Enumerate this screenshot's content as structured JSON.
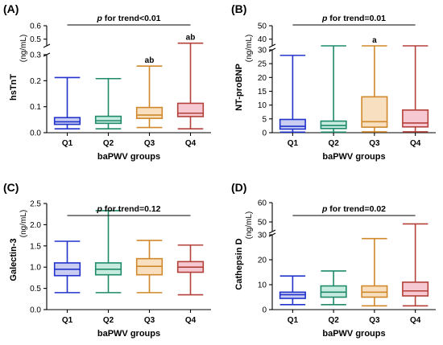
{
  "chart_data": [
    {
      "type": "box",
      "panel_label": "(A)",
      "ylabel": "hsTnT",
      "yunit": "(ng/mL)",
      "xlabel": "baPWV groups",
      "trend": {
        "p": "p",
        "text": " for trend<0.01"
      },
      "categories": [
        "Q1",
        "Q2",
        "Q3",
        "Q4"
      ],
      "yticks_lower": [
        "0.0",
        "0.1",
        "0.2",
        "0.3"
      ],
      "yticks_upper": [
        "0.5",
        "0.6"
      ],
      "axis_break": true,
      "lower_range": [
        0,
        0.3
      ],
      "upper_range": [
        0.45,
        0.6
      ],
      "colors": [
        "#2233cc",
        "#1e8a6a",
        "#d0882a",
        "#b3403a"
      ],
      "fills": [
        "#c9cdf2",
        "#c8ebe0",
        "#f7dfc0",
        "#f6c9d2"
      ],
      "boxes": [
        {
          "min": 0.015,
          "q1": 0.032,
          "median": 0.042,
          "q3": 0.058,
          "max": 0.212
        },
        {
          "min": 0.015,
          "q1": 0.036,
          "median": 0.046,
          "q3": 0.063,
          "max": 0.208
        },
        {
          "min": 0.02,
          "q1": 0.055,
          "median": 0.068,
          "q3": 0.097,
          "max": 0.256
        },
        {
          "min": 0.015,
          "q1": 0.062,
          "median": 0.075,
          "q3": 0.113,
          "max": 0.47
        }
      ],
      "sig_labels": [
        "",
        "",
        "ab",
        "ab"
      ]
    },
    {
      "type": "box",
      "panel_label": "(B)",
      "ylabel": "NT-proBNP",
      "yunit": "(ng/mL)",
      "xlabel": "baPWV groups",
      "trend": {
        "p": "p",
        "text": " for trend=0.01"
      },
      "categories": [
        "Q1",
        "Q2",
        "Q3",
        "Q4"
      ],
      "yticks_lower": [
        "0",
        "5",
        "10",
        "15",
        "20",
        "25",
        "30"
      ],
      "yticks_upper": [
        "40",
        "50"
      ],
      "axis_break": true,
      "lower_range": [
        0,
        30
      ],
      "upper_range": [
        35,
        50
      ],
      "colors": [
        "#2233cc",
        "#1e8a6a",
        "#d0882a",
        "#b3403a"
      ],
      "fills": [
        "#c9cdf2",
        "#c8ebe0",
        "#f7dfc0",
        "#f6c9d2"
      ],
      "boxes": [
        {
          "min": 0.2,
          "q1": 1.3,
          "median": 2.3,
          "q3": 4.8,
          "max": 28
        },
        {
          "min": 0.2,
          "q1": 1.5,
          "median": 2.6,
          "q3": 4.2,
          "max": 35
        },
        {
          "min": 0.3,
          "q1": 2.0,
          "median": 4.0,
          "q3": 13.0,
          "max": 35
        },
        {
          "min": 0.3,
          "q1": 2.1,
          "median": 3.5,
          "q3": 8.2,
          "max": 35
        }
      ],
      "sig_labels": [
        "",
        "",
        "a",
        ""
      ]
    },
    {
      "type": "box",
      "panel_label": "(C)",
      "ylabel": "Galectin-3",
      "yunit": "(ng/mL)",
      "xlabel": "baPWV groups",
      "trend": {
        "p": "p",
        "text": " for trend=0.12"
      },
      "categories": [
        "Q1",
        "Q2",
        "Q3",
        "Q4"
      ],
      "yticks_lower": [
        "0.0",
        "0.5",
        "1.0",
        "1.5",
        "2.0",
        "2.5"
      ],
      "yticks_upper": [],
      "axis_break": false,
      "lower_range": [
        0,
        2.5
      ],
      "upper_range": null,
      "colors": [
        "#2233cc",
        "#1e8a6a",
        "#d0882a",
        "#b3403a"
      ],
      "fills": [
        "#c9cdf2",
        "#c8ebe0",
        "#f7dfc0",
        "#f6c9d2"
      ],
      "boxes": [
        {
          "min": 0.4,
          "q1": 0.8,
          "median": 0.95,
          "q3": 1.1,
          "max": 1.61
        },
        {
          "min": 0.4,
          "q1": 0.82,
          "median": 0.95,
          "q3": 1.1,
          "max": 2.33
        },
        {
          "min": 0.4,
          "q1": 0.82,
          "median": 1.02,
          "q3": 1.2,
          "max": 1.63
        },
        {
          "min": 0.35,
          "q1": 0.88,
          "median": 1.0,
          "q3": 1.13,
          "max": 1.52
        }
      ],
      "sig_labels": [
        "",
        "",
        "",
        ""
      ]
    },
    {
      "type": "box",
      "panel_label": "(D)",
      "ylabel": "Cathepsin D",
      "yunit": "(ng/mL)",
      "xlabel": "baPWV groups",
      "trend": {
        "p": "p",
        "text": " for trend=0.02"
      },
      "categories": [
        "Q1",
        "Q2",
        "Q3",
        "Q4"
      ],
      "yticks_lower": [
        "0",
        "10",
        "20",
        "30"
      ],
      "yticks_upper": [
        "50",
        "60"
      ],
      "axis_break": true,
      "lower_range": [
        0,
        30
      ],
      "upper_range": [
        45,
        60
      ],
      "colors": [
        "#2233cc",
        "#1e8a6a",
        "#d0882a",
        "#b3403a"
      ],
      "fills": [
        "#c9cdf2",
        "#c8ebe0",
        "#f7dfc0",
        "#f6c9d2"
      ],
      "boxes": [
        {
          "min": 2,
          "q1": 4.5,
          "median": 6,
          "q3": 7,
          "max": 13.5
        },
        {
          "min": 2,
          "q1": 5,
          "median": 7,
          "q3": 9.5,
          "max": 15.5
        },
        {
          "min": 1.5,
          "q1": 5,
          "median": 7,
          "q3": 9.5,
          "max": 28.5
        },
        {
          "min": 1.5,
          "q1": 5.5,
          "median": 7.5,
          "q3": 11,
          "max": 49
        }
      ],
      "sig_labels": [
        "",
        "",
        "",
        ""
      ]
    }
  ]
}
